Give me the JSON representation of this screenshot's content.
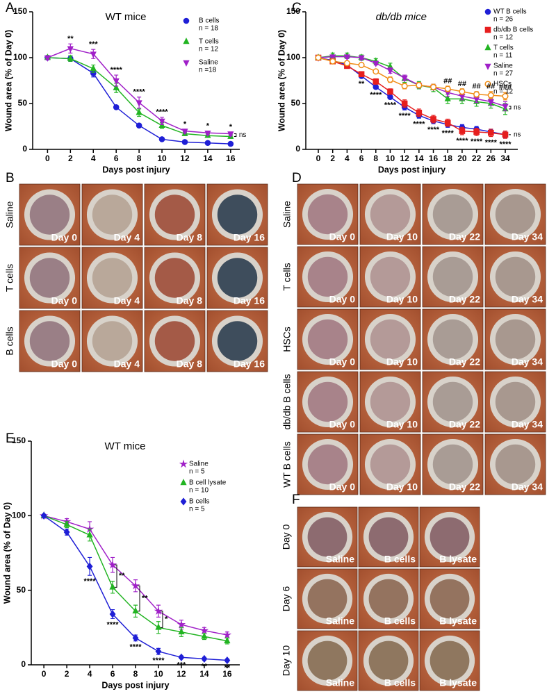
{
  "chart_data": [
    {
      "type": "line",
      "panel": "A",
      "title": "WT mice",
      "xlabel": "Days post injury",
      "ylabel": "Wound area (% of Day 0)",
      "x": [
        0,
        2,
        4,
        6,
        8,
        10,
        12,
        14,
        16
      ],
      "xlim": [
        -1.3,
        16.8
      ],
      "xticks": [
        0,
        2,
        4,
        6,
        8,
        10,
        12,
        14,
        16
      ],
      "ylim": [
        0,
        150
      ],
      "yticks": [
        0,
        50,
        100,
        150
      ],
      "legend": "upper right",
      "series": [
        {
          "name": "B cells",
          "n": "n = 18",
          "color": "#1f1fd6",
          "marker": "circle",
          "values": [
            100,
            99,
            83,
            46,
            26,
            11,
            8,
            7,
            6
          ],
          "errors": [
            1,
            3,
            4,
            2,
            1,
            1,
            1,
            1,
            1
          ]
        },
        {
          "name": "T cells",
          "n": "n = 12",
          "color": "#22b422",
          "marker": "triangle-up",
          "values": [
            100,
            99,
            88,
            67,
            40,
            26,
            17,
            15,
            14
          ],
          "errors": [
            1,
            3,
            4,
            5,
            4,
            3,
            2,
            2,
            2
          ]
        },
        {
          "name": "Saline",
          "n": "n =18",
          "color": "#a020c8",
          "marker": "triangle-down",
          "values": [
            100,
            110,
            104,
            75,
            51,
            31,
            20,
            18,
            17
          ],
          "errors": [
            2,
            5,
            5,
            6,
            6,
            4,
            2,
            2,
            2
          ]
        }
      ],
      "annotations": [
        {
          "x": 2,
          "text": "**",
          "side": "above"
        },
        {
          "x": 4,
          "text": "***",
          "side": "above"
        },
        {
          "x": 6,
          "text": "****",
          "side": "above"
        },
        {
          "x": 8,
          "text": "****",
          "side": "above"
        },
        {
          "x": 10,
          "text": "****",
          "side": "above"
        },
        {
          "x": 12,
          "text": "*",
          "side": "above"
        },
        {
          "x": 14,
          "text": "*",
          "side": "above"
        },
        {
          "x": 16,
          "text": "*",
          "side": "above"
        },
        {
          "text": "ns",
          "side": "end",
          "series": [
            1,
            2
          ]
        }
      ]
    },
    {
      "type": "line",
      "panel": "C",
      "title": "db/db mice",
      "xlabel": "Days post injury",
      "ylabel": "Wound area (% of Day 0)",
      "categories": [
        "0",
        "2",
        "4",
        "6",
        "8",
        "10",
        "12",
        "14",
        "16",
        "18",
        "20",
        "22",
        "26",
        "34"
      ],
      "ylim": [
        0,
        150
      ],
      "yticks": [
        0,
        50,
        100,
        150
      ],
      "legend": "upper right",
      "series": [
        {
          "name": "WT B cells",
          "n": "n = 26",
          "color": "#1f1fd6",
          "marker": "circle",
          "values": [
            100,
            97,
            92,
            80,
            68,
            57,
            46,
            37,
            31,
            27,
            24,
            22,
            19,
            16
          ],
          "errors": [
            1,
            2,
            2,
            2,
            2,
            2,
            3,
            3,
            3,
            3,
            3,
            3,
            3,
            3
          ]
        },
        {
          "name": "db/db B cells",
          "n": "n = 12",
          "color": "#e61e1e",
          "marker": "square",
          "values": [
            100,
            96,
            91,
            82,
            74,
            63,
            50,
            40,
            33,
            29,
            20,
            19,
            18,
            16
          ],
          "errors": [
            1,
            2,
            2,
            2,
            3,
            3,
            4,
            4,
            4,
            4,
            4,
            4,
            4,
            4
          ]
        },
        {
          "name": "T cells",
          "n": "n = 11",
          "color": "#22b422",
          "marker": "triangle-up",
          "values": [
            100,
            102,
            102,
            100,
            96,
            90,
            77,
            70,
            67,
            55,
            55,
            52,
            50,
            44
          ],
          "errors": [
            2,
            3,
            3,
            3,
            3,
            4,
            4,
            4,
            4,
            5,
            5,
            5,
            5,
            6
          ]
        },
        {
          "name": "Saline",
          "n": "n = 27",
          "color": "#a020c8",
          "marker": "triangle-down",
          "values": [
            100,
            101,
            101,
            100,
            94,
            86,
            78,
            70,
            68,
            62,
            58,
            55,
            52,
            47
          ],
          "errors": [
            1,
            2,
            2,
            2,
            2,
            3,
            3,
            3,
            3,
            4,
            4,
            4,
            4,
            5
          ]
        },
        {
          "name": "HSCs",
          "n": "n = 12",
          "color": "#f08c14",
          "marker": "open-circle",
          "values": [
            100,
            96,
            94,
            92,
            85,
            76,
            69,
            70,
            68,
            66,
            63,
            60,
            59,
            58
          ],
          "errors": [
            1,
            2,
            2,
            2,
            2,
            3,
            3,
            3,
            3,
            3,
            3,
            3,
            4,
            4
          ]
        }
      ],
      "annotations": [
        {
          "x": "6",
          "text": "**",
          "side": "below"
        },
        {
          "x": "8",
          "text": "****",
          "side": "below"
        },
        {
          "x": "10",
          "text": "****",
          "side": "below"
        },
        {
          "x": "12",
          "text": "****",
          "side": "below"
        },
        {
          "x": "14",
          "text": "****",
          "side": "below"
        },
        {
          "x": "16",
          "text": "****",
          "side": "below"
        },
        {
          "x": "18",
          "text": "****",
          "side": "below"
        },
        {
          "x": "20",
          "text": "****",
          "side": "below"
        },
        {
          "x": "22",
          "text": "****",
          "side": "below"
        },
        {
          "x": "26",
          "text": "****",
          "side": "below"
        },
        {
          "x": "34",
          "text": "****",
          "side": "below"
        },
        {
          "x": "18",
          "text": "##",
          "side": "above"
        },
        {
          "x": "20",
          "text": "##",
          "side": "above"
        },
        {
          "x": "22",
          "text": "##",
          "side": "above"
        },
        {
          "x": "26",
          "text": "##",
          "side": "above"
        },
        {
          "x": "34",
          "text": "###",
          "side": "above"
        },
        {
          "text": "ns",
          "side": "end",
          "series": [
            2,
            3
          ]
        },
        {
          "text": "ns",
          "side": "end",
          "series": [
            0,
            1
          ]
        }
      ]
    },
    {
      "type": "line",
      "panel": "E",
      "title": "WT mice",
      "xlabel": "Days post injury",
      "ylabel": "Wound area (% of Day 0)",
      "x": [
        0,
        2,
        4,
        6,
        8,
        10,
        12,
        14,
        16
      ],
      "xlim": [
        -1.1,
        17.1
      ],
      "xticks": [
        0,
        2,
        4,
        6,
        8,
        10,
        12,
        14,
        16
      ],
      "ylim": [
        0,
        150
      ],
      "yticks": [
        0,
        50,
        100,
        150
      ],
      "legend": "upper right",
      "series": [
        {
          "name": "Saline",
          "n": "n = 5",
          "color": "#a020c8",
          "marker": "star",
          "values": [
            100,
            96,
            91,
            67,
            53,
            36,
            27,
            23,
            20
          ],
          "errors": [
            1,
            2,
            5,
            5,
            4,
            4,
            3,
            2,
            2
          ]
        },
        {
          "name": "B cell lysate",
          "n": "n = 10",
          "color": "#22b422",
          "marker": "triangle-up",
          "values": [
            100,
            94,
            87,
            52,
            36,
            25,
            22,
            19,
            16
          ],
          "errors": [
            1,
            2,
            4,
            4,
            4,
            4,
            3,
            2,
            2
          ]
        },
        {
          "name": "B cells",
          "n": "n = 5",
          "color": "#1f1fd6",
          "marker": "diamond",
          "values": [
            100,
            89,
            66,
            34,
            18,
            9,
            5,
            4,
            3
          ],
          "errors": [
            1,
            2,
            6,
            3,
            2,
            2,
            1,
            1,
            1
          ]
        }
      ],
      "annotations": [
        {
          "x": 4,
          "text": "****",
          "side": "below"
        },
        {
          "x": 6,
          "text": "****",
          "side": "below"
        },
        {
          "x": 8,
          "text": "****",
          "side": "below"
        },
        {
          "x": 10,
          "text": "****",
          "side": "below"
        },
        {
          "x": 12,
          "text": "***",
          "side": "below"
        },
        {
          "x": 14,
          "text": "**",
          "side": "below"
        },
        {
          "x": 16,
          "text": "**",
          "side": "below"
        },
        {
          "x": 6,
          "text": "**",
          "side": "bracket",
          "series": [
            0,
            1
          ]
        },
        {
          "x": 8,
          "text": "**",
          "side": "bracket",
          "series": [
            0,
            1
          ]
        },
        {
          "x": 10,
          "text": "*",
          "side": "bracket",
          "series": [
            0,
            1
          ]
        }
      ]
    }
  ],
  "photo_panels": [
    {
      "panel": "B",
      "row_labels": [
        "Saline",
        "T cells",
        "B cells"
      ],
      "image_labels": [
        "Day 0",
        "Day 4",
        "Day 8",
        "Day 16"
      ]
    },
    {
      "panel": "D",
      "row_labels": [
        "Saline",
        "T cells",
        "HSCs",
        "db/db B cells",
        "WT B cells"
      ],
      "image_labels": [
        "Day 0",
        "Day 10",
        "Day 22",
        "Day 34"
      ]
    },
    {
      "panel": "F",
      "row_labels": [
        "Day 0",
        "Day 6",
        "Day 10"
      ],
      "image_labels": [
        "Saline",
        "B cells",
        "B lysate"
      ]
    }
  ]
}
